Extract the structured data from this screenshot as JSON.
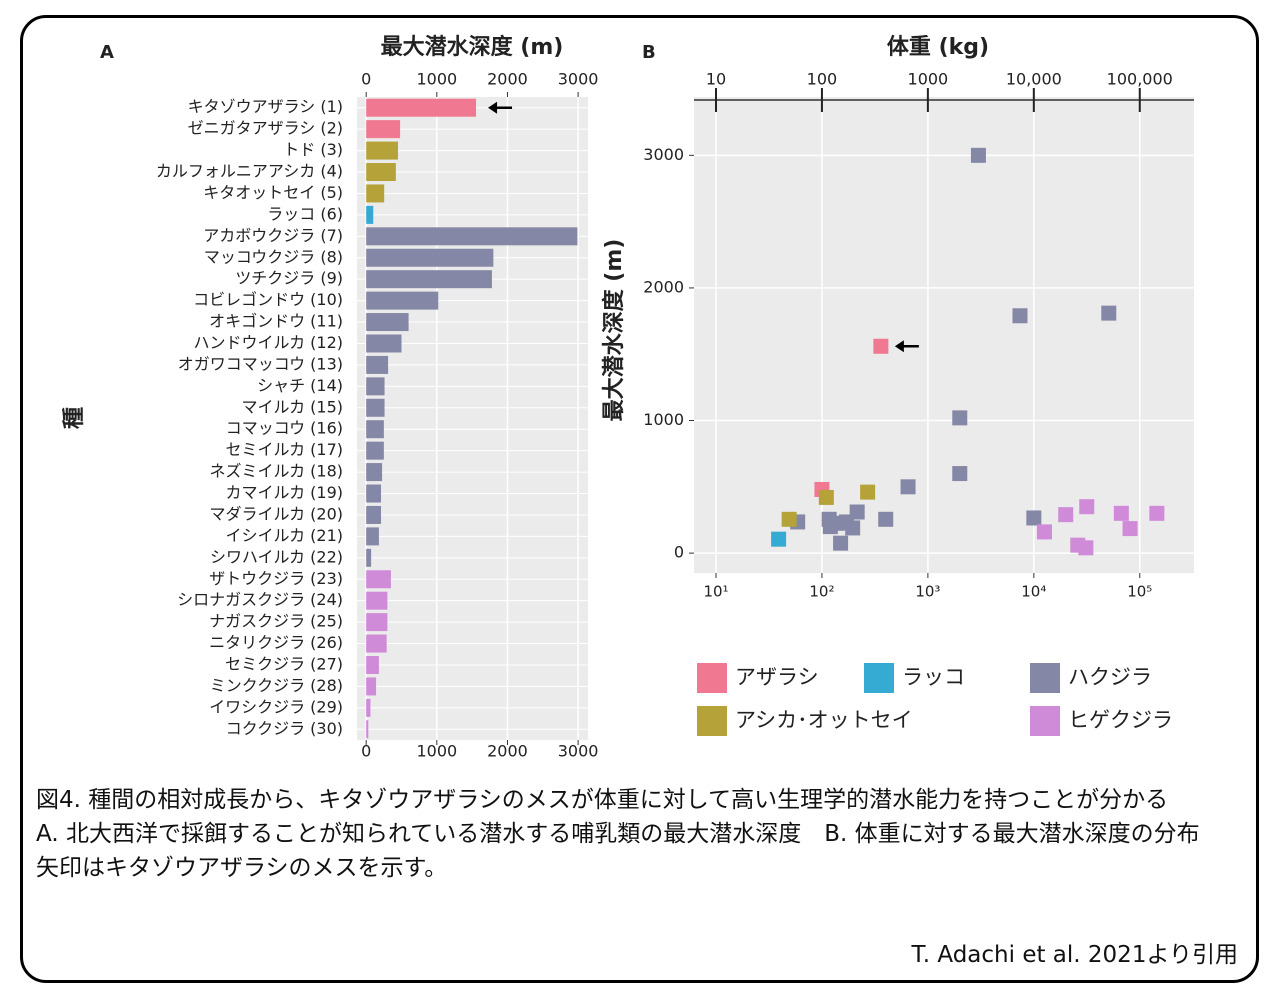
{
  "chart_data": [
    {
      "type": "bar",
      "panel": "A",
      "title": "最大潜水深度 (m)",
      "ylabel": "種",
      "orientation": "horizontal",
      "categories": [
        "キタゾウアザラシ (1)",
        "ゼニガタアザラシ (2)",
        "トド (3)",
        "カルフォルニアアシカ (4)",
        "キタオットセイ (5)",
        "ラッコ (6)",
        "アカボウクジラ (7)",
        "マッコウクジラ (8)",
        "ツチクジラ (9)",
        "コビレゴンドウ (10)",
        "オキゴンドウ (11)",
        "ハンドウイルカ (12)",
        "オガワコマッコウ (13)",
        "シャチ (14)",
        "マイルカ (15)",
        "コマッコウ (16)",
        "セミイルカ (17)",
        "ネズミイルカ (18)",
        "カマイルカ (19)",
        "マダライルカ (20)",
        "イシイルカ (21)",
        "シワハイルカ (22)",
        "ザトウクジラ (23)",
        "シロナガスクジラ (24)",
        "ナガスクジラ (25)",
        "ニタリクジラ (26)",
        "セミクジラ (27)",
        "ミンククジラ (28)",
        "イワシクジラ (29)",
        "コククジラ (30)"
      ],
      "values": [
        1555,
        480,
        450,
        420,
        255,
        100,
        2990,
        1800,
        1780,
        1020,
        600,
        500,
        310,
        260,
        260,
        250,
        250,
        225,
        210,
        210,
        180,
        70,
        350,
        300,
        300,
        290,
        180,
        140,
        60,
        30
      ],
      "colors": [
        "#f07890",
        "#f07890",
        "#b5a33a",
        "#b5a33a",
        "#b5a33a",
        "#35aad3",
        "#8487a5",
        "#8487a5",
        "#8487a5",
        "#8487a5",
        "#8487a5",
        "#8487a5",
        "#8487a5",
        "#8487a5",
        "#8487a5",
        "#8487a5",
        "#8487a5",
        "#8487a5",
        "#8487a5",
        "#8487a5",
        "#8487a5",
        "#8487a5",
        "#cf8ad8",
        "#cf8ad8",
        "#cf8ad8",
        "#cf8ad8",
        "#cf8ad8",
        "#cf8ad8",
        "#cf8ad8",
        "#cf8ad8"
      ],
      "xlim": [
        -130,
        3140
      ],
      "xticks": [
        0,
        1000,
        2000,
        3000
      ],
      "grid": true
    },
    {
      "type": "scatter",
      "panel": "B",
      "title": "体重 (kg)",
      "ylabel": "最大潜水深度 (m)",
      "xscale": "log",
      "xlim": [
        6.2,
        325000
      ],
      "xticks": [
        10,
        100,
        1000,
        {
          "value": 10000,
          "label": "10,000"
        },
        {
          "value": 100000,
          "label": "100,000"
        }
      ],
      "xticks_bottom": [
        {
          "value": 10,
          "label": "10¹"
        },
        {
          "value": 100,
          "label": "10²"
        },
        {
          "value": 1000,
          "label": "10³"
        },
        {
          "value": 10000,
          "label": "10⁴"
        },
        {
          "value": 100000,
          "label": "10⁵"
        }
      ],
      "ylim": [
        -150,
        3440
      ],
      "yticks": [
        0,
        1000,
        2000,
        3000
      ],
      "grid": true,
      "series": [
        {
          "name": "アザラシ",
          "color": "#f07890",
          "x": [
            360,
            100
          ],
          "values": [
            1560,
            480
          ]
        },
        {
          "name": "ラッコ",
          "color": "#35aad3",
          "x": [
            39
          ],
          "values": [
            105
          ]
        },
        {
          "name": "ハクジラ",
          "color": "#8487a5",
          "x": [
            3000,
            7400,
            51000,
            2000,
            2000,
            650,
            400,
            10000,
            59,
            117,
            120,
            150,
            170,
            195,
            215,
            140
          ],
          "values": [
            3000,
            1790,
            1810,
            1020,
            600,
            500,
            255,
            265,
            235,
            255,
            200,
            75,
            235,
            190,
            310,
            225
          ]
        },
        {
          "name": "アシカ･オットセイ",
          "color": "#b5a33a",
          "x": [
            49,
            110,
            270
          ],
          "values": [
            255,
            420,
            460
          ]
        },
        {
          "name": "ヒゲクジラ",
          "color": "#cf8ad8",
          "x": [
            12600,
            20000,
            31600,
            26000,
            31000,
            67000,
            81000,
            145000
          ],
          "values": [
            160,
            290,
            350,
            60,
            40,
            300,
            185,
            300
          ]
        }
      ]
    }
  ],
  "caption": [
    "図4. 種間の相対成長から、キタゾウアザラシのメスが体重に対して高い生理学的潜水能力を持つことが分かる",
    "A. 北大西洋で採餌することが知られている潜水する哺乳類の最大潜水深度　B. 体重に対する最大潜水深度の分布　矢印はキタゾウアザラシのメスを示す。"
  ],
  "citation": "T. Adachi et al. 2021より引用"
}
